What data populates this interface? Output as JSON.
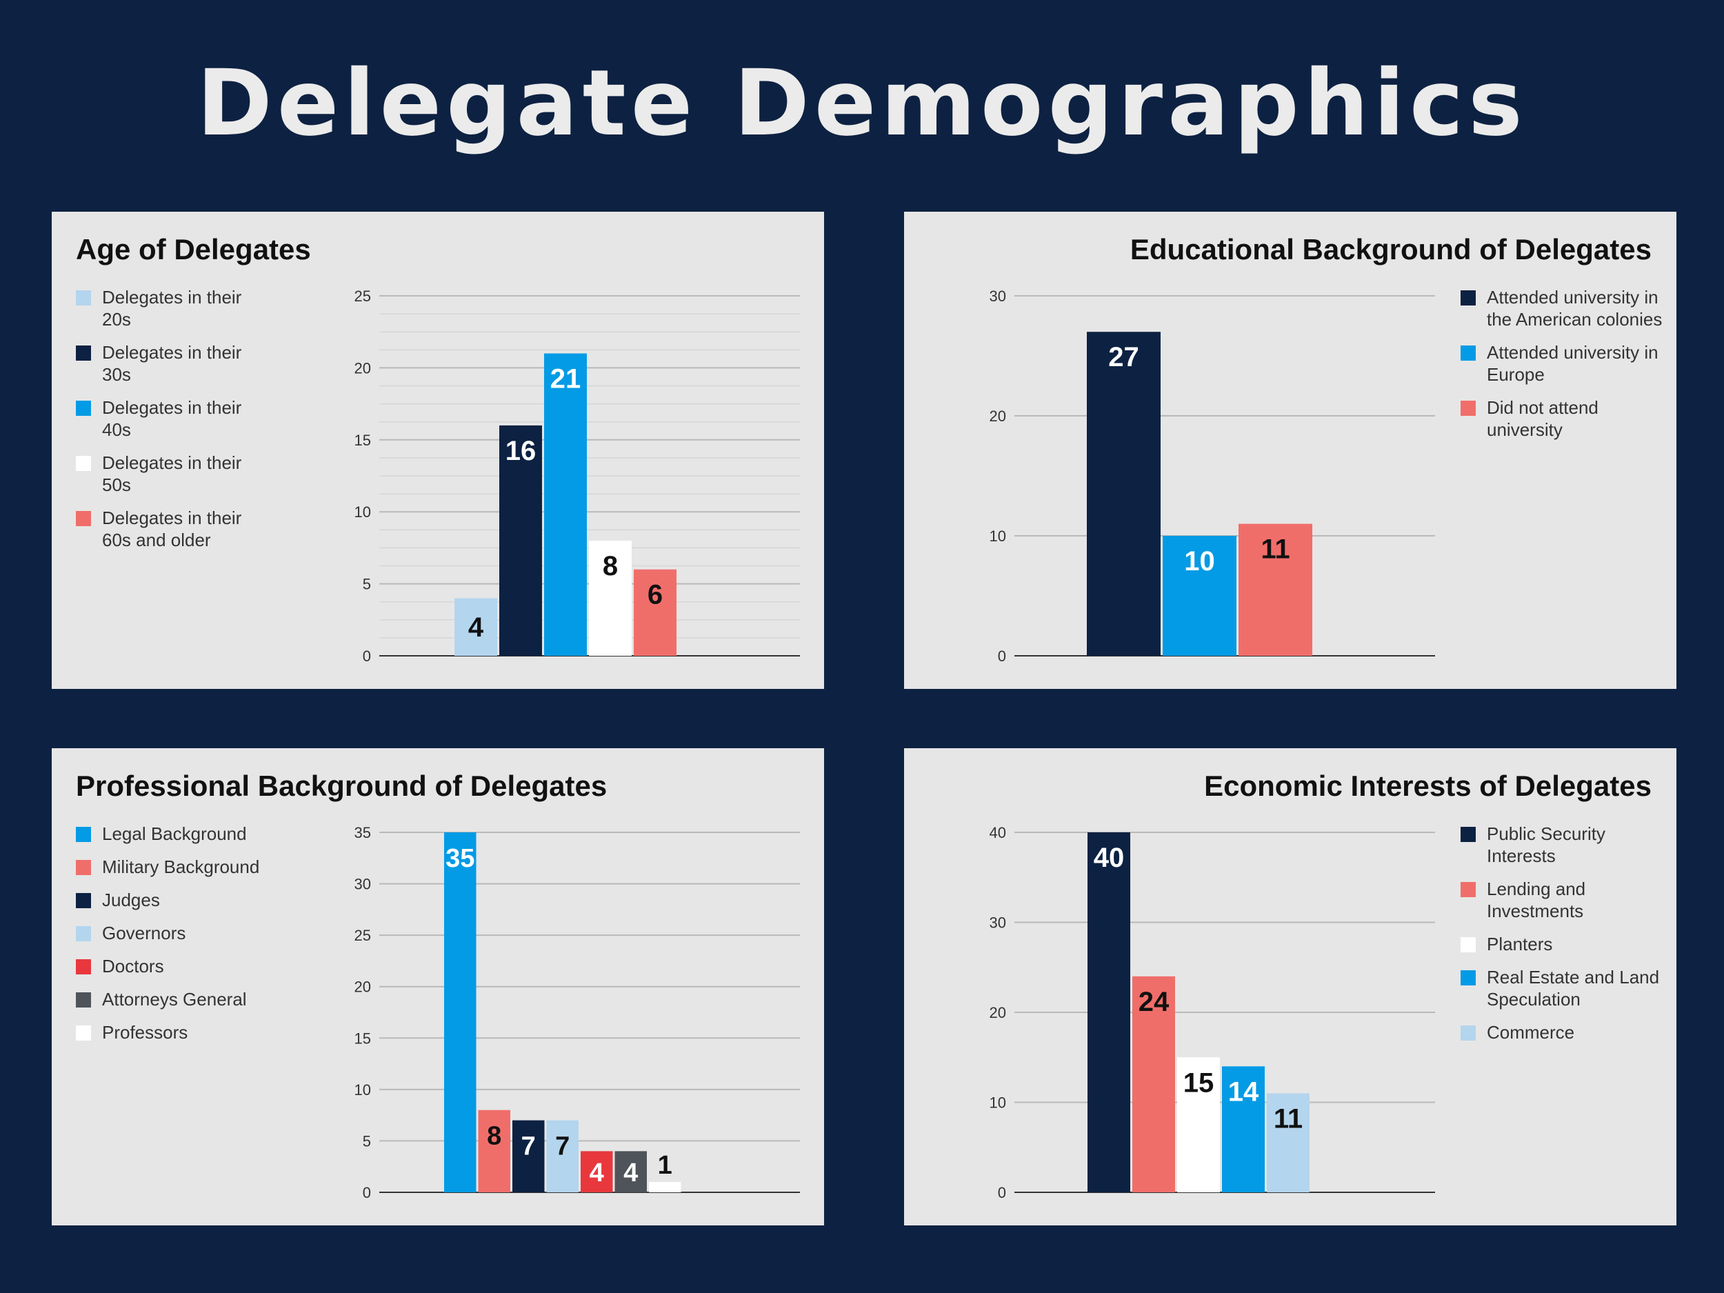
{
  "page": {
    "title": "Delegate Demographics"
  },
  "chart_data": [
    {
      "id": "age",
      "type": "bar",
      "title": "Age of Delegates",
      "title_align": "left",
      "legend_position": "left",
      "ylim": [
        0,
        25
      ],
      "yticks": [
        0,
        5,
        10,
        15,
        20,
        25
      ],
      "minor_gridlines": true,
      "series": [
        {
          "name": "Delegates in their 20s",
          "value": 4,
          "color": "#b4d5ee",
          "label_color": "#111111"
        },
        {
          "name": "Delegates in their 30s",
          "value": 16,
          "color": "#0d2142",
          "label_color": "#ffffff"
        },
        {
          "name": "Delegates in their 40s",
          "value": 21,
          "color": "#039be5",
          "label_color": "#ffffff"
        },
        {
          "name": "Delegates in their 50s",
          "value": 8,
          "color": "#ffffff",
          "label_color": "#111111"
        },
        {
          "name": "Delegates in their 60s and older",
          "value": 6,
          "color": "#f06e6a",
          "label_color": "#111111"
        }
      ]
    },
    {
      "id": "edu",
      "type": "bar",
      "title": "Educational Background of Delegates",
      "title_align": "right",
      "legend_position": "right",
      "ylim": [
        0,
        30
      ],
      "yticks": [
        0,
        10,
        20,
        30
      ],
      "minor_gridlines": false,
      "series": [
        {
          "name": "Attended university in the American colonies",
          "value": 27,
          "color": "#0d2142",
          "label_color": "#ffffff"
        },
        {
          "name": "Attended university in Europe",
          "value": 10,
          "color": "#039be5",
          "label_color": "#ffffff"
        },
        {
          "name": "Did not attend university",
          "value": 11,
          "color": "#f06e6a",
          "label_color": "#111111"
        }
      ]
    },
    {
      "id": "prof",
      "type": "bar",
      "title": "Professional Background of Delegates",
      "title_align": "left",
      "legend_position": "left",
      "ylim": [
        0,
        35
      ],
      "yticks": [
        0,
        5,
        10,
        15,
        20,
        25,
        30,
        35
      ],
      "minor_gridlines": false,
      "series": [
        {
          "name": "Legal Background",
          "value": 35,
          "color": "#039be5",
          "label_color": "#ffffff"
        },
        {
          "name": "Military Background",
          "value": 8,
          "color": "#f06e6a",
          "label_color": "#111111"
        },
        {
          "name": "Judges",
          "value": 7,
          "color": "#0d2142",
          "label_color": "#ffffff"
        },
        {
          "name": "Governors",
          "value": 7,
          "color": "#b4d5ee",
          "label_color": "#111111"
        },
        {
          "name": "Doctors",
          "value": 4,
          "color": "#e8383d",
          "label_color": "#ffffff"
        },
        {
          "name": "Attorneys General",
          "value": 4,
          "color": "#4f535a",
          "label_color": "#ffffff"
        },
        {
          "name": "Professors",
          "value": 1,
          "color": "#ffffff",
          "label_color": "#111111"
        }
      ]
    },
    {
      "id": "econ",
      "type": "bar",
      "title": "Economic Interests of Delegates",
      "title_align": "right",
      "legend_position": "right",
      "ylim": [
        0,
        40
      ],
      "yticks": [
        0,
        10,
        20,
        30,
        40
      ],
      "minor_gridlines": false,
      "series": [
        {
          "name": "Public Security Interests",
          "value": 40,
          "color": "#0d2142",
          "label_color": "#ffffff"
        },
        {
          "name": "Lending and Investments",
          "value": 24,
          "color": "#f06e6a",
          "label_color": "#111111"
        },
        {
          "name": "Planters",
          "value": 15,
          "color": "#ffffff",
          "label_color": "#111111"
        },
        {
          "name": "Real Estate and Land Speculation",
          "value": 14,
          "color": "#039be5",
          "label_color": "#ffffff"
        },
        {
          "name": "Commerce",
          "value": 11,
          "color": "#b4d5ee",
          "label_color": "#111111"
        }
      ]
    }
  ]
}
